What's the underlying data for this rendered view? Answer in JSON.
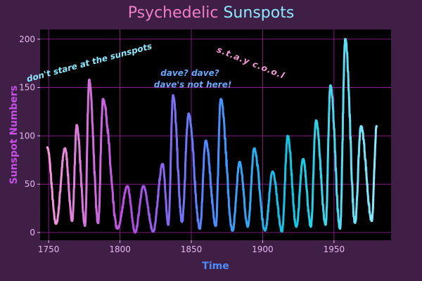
{
  "title_part1": "Psychedelic",
  "title_part2": "Sunspots",
  "colors": {
    "background": "#3f1f45",
    "plot_background": "#000000",
    "grid": "#a020a0",
    "axis_text": "#e6b8f0",
    "ylabel_color": "#c64fe6",
    "xlabel_color": "#4d8cff",
    "palette": [
      "#f49ad8",
      "#b44ae0",
      "#4d8cff",
      "#10c9e0",
      "#8ee8ff"
    ]
  },
  "chart_data": {
    "type": "line",
    "title": "Psychedelic Sunspots",
    "xlabel": "Time",
    "ylabel": "Sunspot Numbers",
    "xlim": [
      1744,
      1990
    ],
    "ylim": [
      -8,
      210
    ],
    "xticks": [
      1750,
      1800,
      1850,
      1900,
      1950
    ],
    "yticks": [
      0,
      50,
      100,
      150,
      200
    ],
    "grid": true,
    "cycles": [
      {
        "x": 1749.0,
        "y": 88
      },
      {
        "x": 1755.2,
        "y": 9
      },
      {
        "x": 1761.5,
        "y": 87
      },
      {
        "x": 1766.5,
        "y": 12
      },
      {
        "x": 1769.7,
        "y": 111
      },
      {
        "x": 1775.5,
        "y": 7
      },
      {
        "x": 1778.4,
        "y": 158
      },
      {
        "x": 1784.7,
        "y": 10
      },
      {
        "x": 1788.1,
        "y": 138
      },
      {
        "x": 1798.3,
        "y": 4
      },
      {
        "x": 1805.2,
        "y": 48
      },
      {
        "x": 1810.6,
        "y": 0
      },
      {
        "x": 1816.4,
        "y": 48
      },
      {
        "x": 1823.3,
        "y": 1
      },
      {
        "x": 1829.9,
        "y": 71
      },
      {
        "x": 1833.9,
        "y": 8
      },
      {
        "x": 1837.2,
        "y": 142
      },
      {
        "x": 1843.5,
        "y": 11
      },
      {
        "x": 1848.1,
        "y": 123
      },
      {
        "x": 1856.0,
        "y": 4
      },
      {
        "x": 1860.1,
        "y": 95
      },
      {
        "x": 1867.2,
        "y": 7
      },
      {
        "x": 1870.6,
        "y": 138
      },
      {
        "x": 1878.9,
        "y": 2
      },
      {
        "x": 1883.9,
        "y": 73
      },
      {
        "x": 1889.6,
        "y": 6
      },
      {
        "x": 1894.1,
        "y": 87
      },
      {
        "x": 1901.7,
        "y": 2
      },
      {
        "x": 1907.0,
        "y": 63
      },
      {
        "x": 1913.6,
        "y": 1
      },
      {
        "x": 1917.6,
        "y": 100
      },
      {
        "x": 1923.6,
        "y": 6
      },
      {
        "x": 1928.4,
        "y": 76
      },
      {
        "x": 1933.8,
        "y": 6
      },
      {
        "x": 1937.4,
        "y": 116
      },
      {
        "x": 1944.2,
        "y": 8
      },
      {
        "x": 1947.5,
        "y": 152
      },
      {
        "x": 1954.3,
        "y": 4
      },
      {
        "x": 1957.9,
        "y": 200
      },
      {
        "x": 1964.8,
        "y": 10
      },
      {
        "x": 1968.9,
        "y": 110
      },
      {
        "x": 1976.5,
        "y": 12
      },
      {
        "x": 1979.9,
        "y": 110
      }
    ],
    "annotations": [
      {
        "text": "don't stare at the sunspots",
        "x": 1779,
        "y": 173,
        "rotate": -15,
        "color": "#8ee8ff"
      },
      {
        "text": "dave? dave?",
        "x": 1849,
        "y": 162,
        "rotate": 0,
        "color": "#6aa8ff"
      },
      {
        "text": "dave's not here!",
        "x": 1851,
        "y": 150,
        "rotate": 0,
        "color": "#6aa8ff"
      },
      {
        "text": "s.t.a.y  c.o.o.l",
        "x": 1891,
        "y": 173,
        "rotate": 22,
        "color": "#f49ad8"
      }
    ]
  }
}
